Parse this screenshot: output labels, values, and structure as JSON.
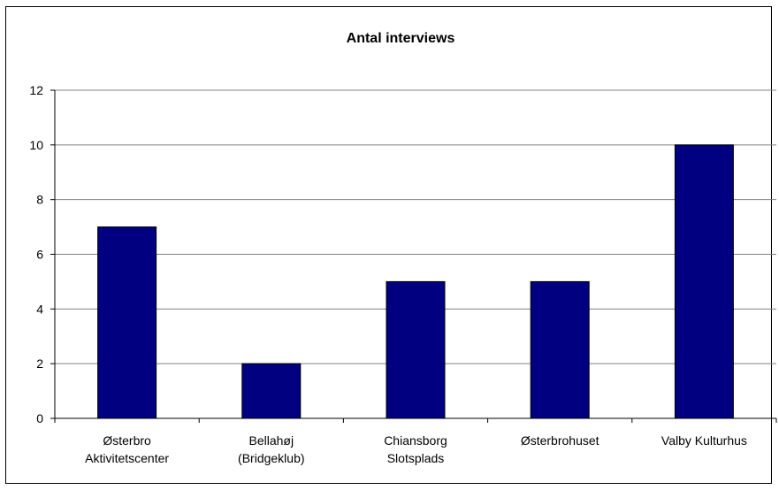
{
  "chart_data": {
    "type": "bar",
    "title": "Antal interviews",
    "xlabel": "",
    "ylabel": "",
    "categories": [
      [
        "Østerbro",
        "Aktivitetscenter"
      ],
      [
        "Bellahøj",
        "(Bridgeklub)"
      ],
      [
        "Chiansborg",
        "Slotsplads"
      ],
      [
        "Østerbrohuset"
      ],
      [
        "Valby Kulturhus"
      ]
    ],
    "values": [
      7,
      2,
      5,
      5,
      10
    ],
    "ylim": [
      0,
      12
    ],
    "yticks": [
      0,
      2,
      4,
      6,
      8,
      10,
      12
    ],
    "grid": true,
    "legend": "none",
    "bar_color": "#000080",
    "grid_color": "#808080"
  }
}
